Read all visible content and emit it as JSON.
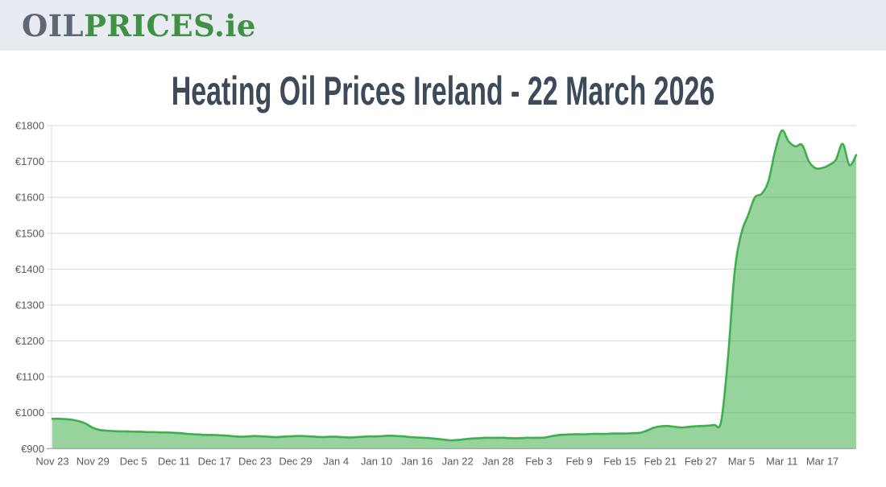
{
  "header": {
    "logo": {
      "part1": "OIL",
      "part2": "PRICES",
      "part3": ".ie"
    }
  },
  "page_title": "Heating Oil Prices Ireland - 22 March 2026",
  "colors": {
    "header_bg": "#e9ebf2",
    "logo_gray": "#5d6877",
    "logo_green": "#3f9144",
    "title_color": "#3d4a5a",
    "accent_green": "#3fae4c",
    "area_fill": "rgba(63,174,76,0.55)",
    "grid_line": "#d8d8d8",
    "axis_line": "#8e8e8e",
    "axis_label": "#58595b"
  },
  "chart_data": {
    "type": "area",
    "title": "Heating Oil Prices Ireland - 22 March 2026",
    "xlabel": "",
    "ylabel": "",
    "ylim": [
      900,
      1800
    ],
    "ytick_step": 100,
    "ytick_labels": [
      "€900",
      "€1000",
      "€1100",
      "€1200",
      "€1300",
      "€1400",
      "€1500",
      "€1600",
      "€1700",
      "€1800"
    ],
    "xtick_every": 6,
    "xtick_labels": [
      "Nov 23",
      "Nov 29",
      "Dec 5",
      "Dec 11",
      "Dec 17",
      "Dec 23",
      "Dec 29",
      "Jan 4",
      "Jan 10",
      "Jan 16",
      "Jan 22",
      "Jan 28",
      "Feb 3",
      "Feb 9",
      "Feb 15",
      "Feb 21",
      "Feb 27",
      "Mar 5",
      "Mar 11",
      "Mar 17"
    ],
    "grid": true,
    "legend": false,
    "x": [
      "Nov 23",
      "Nov 24",
      "Nov 25",
      "Nov 26",
      "Nov 27",
      "Nov 28",
      "Nov 29",
      "Nov 30",
      "Dec 1",
      "Dec 2",
      "Dec 3",
      "Dec 4",
      "Dec 5",
      "Dec 6",
      "Dec 7",
      "Dec 8",
      "Dec 9",
      "Dec 10",
      "Dec 11",
      "Dec 12",
      "Dec 13",
      "Dec 14",
      "Dec 15",
      "Dec 16",
      "Dec 17",
      "Dec 18",
      "Dec 19",
      "Dec 20",
      "Dec 21",
      "Dec 22",
      "Dec 23",
      "Dec 24",
      "Dec 25",
      "Dec 26",
      "Dec 27",
      "Dec 28",
      "Dec 29",
      "Dec 30",
      "Dec 31",
      "Jan 1",
      "Jan 2",
      "Jan 3",
      "Jan 4",
      "Jan 5",
      "Jan 6",
      "Jan 7",
      "Jan 8",
      "Jan 9",
      "Jan 10",
      "Jan 11",
      "Jan 12",
      "Jan 13",
      "Jan 14",
      "Jan 15",
      "Jan 16",
      "Jan 17",
      "Jan 18",
      "Jan 19",
      "Jan 20",
      "Jan 21",
      "Jan 22",
      "Jan 23",
      "Jan 24",
      "Jan 25",
      "Jan 26",
      "Jan 27",
      "Jan 28",
      "Jan 29",
      "Jan 30",
      "Jan 31",
      "Feb 1",
      "Feb 2",
      "Feb 3",
      "Feb 4",
      "Feb 5",
      "Feb 6",
      "Feb 7",
      "Feb 8",
      "Feb 9",
      "Feb 10",
      "Feb 11",
      "Feb 12",
      "Feb 13",
      "Feb 14",
      "Feb 15",
      "Feb 16",
      "Feb 17",
      "Feb 18",
      "Feb 19",
      "Feb 20",
      "Feb 21",
      "Feb 22",
      "Feb 23",
      "Feb 24",
      "Feb 25",
      "Feb 26",
      "Feb 27",
      "Feb 28",
      "Mar 1",
      "Mar 2",
      "Mar 3",
      "Mar 4",
      "Mar 5",
      "Mar 6",
      "Mar 7",
      "Mar 8",
      "Mar 9",
      "Mar 10",
      "Mar 11",
      "Mar 12",
      "Mar 13",
      "Mar 14",
      "Mar 15",
      "Mar 16",
      "Mar 17",
      "Mar 18",
      "Mar 19",
      "Mar 20",
      "Mar 21",
      "Mar 22"
    ],
    "values": [
      983,
      983,
      982,
      980,
      976,
      969,
      958,
      952,
      950,
      949,
      948,
      948,
      947,
      947,
      946,
      946,
      945,
      945,
      944,
      943,
      941,
      940,
      939,
      938,
      938,
      937,
      936,
      934,
      933,
      934,
      935,
      934,
      933,
      932,
      933,
      934,
      935,
      935,
      934,
      933,
      932,
      933,
      933,
      932,
      931,
      932,
      933,
      934,
      934,
      935,
      936,
      935,
      934,
      932,
      931,
      930,
      929,
      927,
      925,
      923,
      924,
      926,
      928,
      929,
      930,
      930,
      930,
      930,
      929,
      929,
      930,
      930,
      930,
      931,
      935,
      938,
      939,
      940,
      940,
      940,
      941,
      941,
      941,
      942,
      942,
      942,
      943,
      944,
      950,
      958,
      962,
      963,
      961,
      959,
      960,
      962,
      963,
      964,
      966,
      975,
      1150,
      1390,
      1500,
      1550,
      1600,
      1610,
      1645,
      1730,
      1786,
      1756,
      1742,
      1746,
      1700,
      1681,
      1682,
      1690,
      1705,
      1749,
      1690,
      1718
    ]
  }
}
